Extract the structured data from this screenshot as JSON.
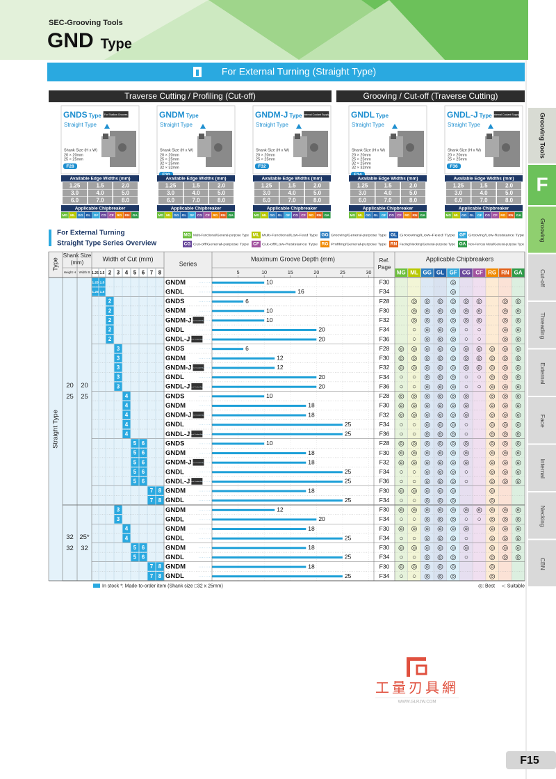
{
  "header": {
    "category": "SEC-Grooving Tools",
    "title": "GND",
    "title_suffix": "Type"
  },
  "banner": "For External Turning (Straight Type)",
  "sections": [
    "Traverse Cutting / Profiling (Cut-off)",
    "Grooving / Cut-off (Traverse Cutting)"
  ],
  "cards_common": {
    "type_word": "Type",
    "subtitle": "Straight Type",
    "shank_label": "Shank Size (H x W)",
    "edge_title": "Available Edge Widths (mm)",
    "edge_widths": [
      "1.25",
      "1.5",
      "2.0",
      "3.0",
      "4.0",
      "5.0",
      "6.0",
      "7.0",
      "8.0"
    ],
    "chip_title": "Applicable Chipbreaker"
  },
  "cards": [
    {
      "name": "GNDS",
      "badge": "For Shallow Grooves",
      "shanks": [
        "20 × 20mm",
        "25 × 25mm"
      ],
      "page": "F28"
    },
    {
      "name": "GNDM",
      "shanks": [
        "20 × 20mm",
        "25 × 25mm",
        "32 × 25mm",
        "32 × 32mm"
      ],
      "page": "F30"
    },
    {
      "name": "GNDM-J",
      "badge": "Internal Coolant Supply",
      "shanks": [
        "20 × 20mm",
        "25 × 25mm"
      ],
      "page": "F32"
    },
    {
      "name": "GNDL",
      "shanks": [
        "20 × 20mm",
        "25 × 25mm",
        "32 × 25mm",
        "32 × 32mm"
      ],
      "page": "F34"
    },
    {
      "name": "GNDL-J",
      "badge": "Internal Coolant Supply",
      "shanks": [
        "20 × 20mm",
        "25 × 25mm"
      ],
      "page": "F36"
    }
  ],
  "chipbreakers": [
    {
      "code": "MG",
      "text": "Multi-Functional/General-purpose Type",
      "color": "#6cbf3c",
      "tint": "#e6f3dc"
    },
    {
      "code": "ML",
      "text": "Multi-Functional/Low-Feed Type",
      "color": "#b9c800",
      "tint": "#f2f5d6"
    },
    {
      "code": "GG",
      "text": "Grooving/General-purpose Type",
      "color": "#2f7fc1",
      "tint": "#dce8f5"
    },
    {
      "code": "GL",
      "text": "Grooving/Low-Feed Type",
      "color": "#1f5fa8",
      "tint": "#d9e2f0"
    },
    {
      "code": "GF",
      "text": "Grooving/Low-Resistance Type",
      "color": "#37a9dc",
      "tint": "#dcf0f9"
    },
    {
      "code": "CG",
      "text": "Cut-off/General-purpose Type",
      "color": "#6a4a9c",
      "tint": "#e6dff0"
    },
    {
      "code": "CF",
      "text": "Cut-off/Low-Resistance Type",
      "color": "#a2539f",
      "tint": "#f0dff0"
    },
    {
      "code": "RG",
      "text": "Profiling/General-purpose Type",
      "color": "#f08a00",
      "tint": "#fdebd4"
    },
    {
      "code": "RN",
      "text": "Facing/Necking/General-purpose Type",
      "color": "#e2601a",
      "tint": "#fbe2d6"
    },
    {
      "code": "GA",
      "text": "Non-Ferrous Metal/General-purpose Type",
      "color": "#2e9a48",
      "tint": "#dcefe0"
    }
  ],
  "overview": {
    "title": [
      "For External Turning",
      "Straight Type Series Overview"
    ]
  },
  "table": {
    "type_header": "Type",
    "shank_header": [
      "Shank Size",
      "(mm)"
    ],
    "height_header": "Height H",
    "width_header": "Width B",
    "cut_header": "Width of Cut (mm)",
    "widths": [
      "1.25",
      "1.5",
      "2",
      "3",
      "4",
      "5",
      "6",
      "7",
      "8"
    ],
    "series_header": "Series",
    "depth_header": "Maximum Groove Depth (mm)",
    "depth_lim": [
      0,
      31
    ],
    "depth_ticks": [
      5,
      10,
      15,
      20,
      25,
      30
    ],
    "ref_header": [
      "Ref.",
      "Page"
    ],
    "chip_header": "Applicable Chipbreakers",
    "type_label": "Straight Type",
    "groups": [
      {
        "heights": [
          "20",
          "25"
        ],
        "widths": [
          "20",
          "25"
        ],
        "rows": [
          0,
          23
        ]
      },
      {
        "heights": [
          "32",
          "32"
        ],
        "widths": [
          "25*",
          "32"
        ],
        "rows": [
          24,
          31
        ]
      }
    ],
    "rows": [
      {
        "series": "GNDM",
        "widths": [
          "1.25",
          "1.5"
        ],
        "depth": 10,
        "page": "F30",
        "cb": [
          null,
          null,
          null,
          null,
          "◎",
          null,
          null,
          null,
          null,
          null
        ]
      },
      {
        "series": "GNDL",
        "widths": [
          "1.25",
          "1.5"
        ],
        "depth": 16,
        "page": "F34",
        "cb": [
          null,
          null,
          null,
          null,
          "◎",
          null,
          null,
          null,
          null,
          null
        ]
      },
      {
        "series": "GNDS",
        "widths": [
          "2"
        ],
        "depth": 6,
        "page": "F28",
        "cb": [
          null,
          "◎",
          "◎",
          "◎",
          "◎",
          "◎",
          "◎",
          null,
          "◎",
          "◎"
        ]
      },
      {
        "series": "GNDM",
        "widths": [
          "2"
        ],
        "depth": 10,
        "page": "F30",
        "cb": [
          null,
          "◎",
          "◎",
          "◎",
          "◎",
          "◎",
          "◎",
          null,
          "◎",
          "◎"
        ]
      },
      {
        "series": "GNDM-J",
        "badge": "Internal Coolant Supply",
        "widths": [
          "2"
        ],
        "depth": 10,
        "page": "F32",
        "cb": [
          null,
          "◎",
          "◎",
          "◎",
          "◎",
          "◎",
          "◎",
          null,
          "◎",
          "◎"
        ]
      },
      {
        "series": "GNDL",
        "widths": [
          "2"
        ],
        "depth": 20,
        "page": "F34",
        "cb": [
          null,
          "○",
          "◎",
          "◎",
          "◎",
          "○",
          "○",
          null,
          "◎",
          "◎"
        ]
      },
      {
        "series": "GNDL-J",
        "badge": "Internal Coolant Supply",
        "widths": [
          "2"
        ],
        "depth": 20,
        "page": "F36",
        "cb": [
          null,
          "○",
          "◎",
          "◎",
          "◎",
          "○",
          "○",
          null,
          "◎",
          "◎"
        ]
      },
      {
        "series": "GNDS",
        "widths": [
          "3"
        ],
        "depth": 6,
        "page": "F28",
        "cb": [
          "◎",
          "◎",
          "◎",
          "◎",
          "◎",
          "◎",
          "◎",
          "◎",
          "◎",
          "◎"
        ]
      },
      {
        "series": "GNDM",
        "widths": [
          "3"
        ],
        "depth": 12,
        "page": "F30",
        "cb": [
          "◎",
          "◎",
          "◎",
          "◎",
          "◎",
          "◎",
          "◎",
          "◎",
          "◎",
          "◎"
        ]
      },
      {
        "series": "GNDM-J",
        "badge": "Internal Coolant Supply",
        "widths": [
          "3"
        ],
        "depth": 12,
        "page": "F32",
        "cb": [
          "◎",
          "◎",
          "◎",
          "◎",
          "◎",
          "◎",
          "◎",
          "◎",
          "◎",
          "◎"
        ]
      },
      {
        "series": "GNDL",
        "widths": [
          "3"
        ],
        "depth": 20,
        "page": "F34",
        "cb": [
          "○",
          "○",
          "◎",
          "◎",
          "◎",
          "○",
          "○",
          "◎",
          "◎",
          "◎"
        ]
      },
      {
        "series": "GNDL-J",
        "badge": "Internal Coolant Supply",
        "widths": [
          "3"
        ],
        "depth": 20,
        "page": "F36",
        "cb": [
          "○",
          "○",
          "◎",
          "◎",
          "◎",
          "○",
          "○",
          "◎",
          "◎",
          "◎"
        ]
      },
      {
        "series": "GNDS",
        "widths": [
          "4"
        ],
        "depth": 10,
        "page": "F28",
        "cb": [
          "◎",
          "◎",
          "◎",
          "◎",
          "◎",
          "◎",
          null,
          "◎",
          "◎",
          "◎"
        ]
      },
      {
        "series": "GNDM",
        "widths": [
          "4"
        ],
        "depth": 18,
        "page": "F30",
        "cb": [
          "◎",
          "◎",
          "◎",
          "◎",
          "◎",
          "◎",
          null,
          "◎",
          "◎",
          "◎"
        ]
      },
      {
        "series": "GNDM-J",
        "badge": "Internal Coolant Supply",
        "widths": [
          "4"
        ],
        "depth": 18,
        "page": "F32",
        "cb": [
          "◎",
          "◎",
          "◎",
          "◎",
          "◎",
          "◎",
          null,
          "◎",
          "◎",
          "◎"
        ]
      },
      {
        "series": "GNDL",
        "widths": [
          "4"
        ],
        "depth": 25,
        "page": "F34",
        "cb": [
          "○",
          "○",
          "◎",
          "◎",
          "◎",
          "○",
          null,
          "◎",
          "◎",
          "◎"
        ]
      },
      {
        "series": "GNDL-J",
        "badge": "Internal Coolant Supply",
        "widths": [
          "4"
        ],
        "depth": 25,
        "page": "F36",
        "cb": [
          "○",
          "○",
          "◎",
          "◎",
          "◎",
          "○",
          null,
          "◎",
          "◎",
          "◎"
        ]
      },
      {
        "series": "GNDS",
        "widths": [
          "5",
          "6"
        ],
        "depth": 10,
        "page": "F28",
        "cb": [
          "◎",
          "◎",
          "◎",
          "◎",
          "◎",
          "◎",
          null,
          "◎",
          "◎",
          "◎"
        ]
      },
      {
        "series": "GNDM",
        "widths": [
          "5",
          "6"
        ],
        "depth": 18,
        "page": "F30",
        "cb": [
          "◎",
          "◎",
          "◎",
          "◎",
          "◎",
          "◎",
          null,
          "◎",
          "◎",
          "◎"
        ]
      },
      {
        "series": "GNDM-J",
        "badge": "Internal Coolant Supply",
        "widths": [
          "5",
          "6"
        ],
        "depth": 18,
        "page": "F32",
        "cb": [
          "◎",
          "◎",
          "◎",
          "◎",
          "◎",
          "◎",
          null,
          "◎",
          "◎",
          "◎"
        ]
      },
      {
        "series": "GNDL",
        "widths": [
          "5",
          "6"
        ],
        "depth": 25,
        "page": "F34",
        "cb": [
          "○",
          "○",
          "◎",
          "◎",
          "◎",
          "○",
          null,
          "◎",
          "◎",
          "◎"
        ]
      },
      {
        "series": "GNDL-J",
        "badge": "Internal Coolant Supply",
        "widths": [
          "5",
          "6"
        ],
        "depth": 25,
        "page": "F36",
        "cb": [
          "○",
          "○",
          "◎",
          "◎",
          "◎",
          "○",
          null,
          "◎",
          "◎",
          "◎"
        ]
      },
      {
        "series": "GNDM",
        "widths": [
          "7",
          "8"
        ],
        "depth": 18,
        "page": "F30",
        "cb": [
          "◎",
          "◎",
          "◎",
          "◎",
          "◎",
          null,
          null,
          "◎",
          null,
          null
        ]
      },
      {
        "series": "GNDL",
        "widths": [
          "7",
          "8"
        ],
        "depth": 25,
        "page": "F34",
        "cb": [
          "○",
          "○",
          "◎",
          "◎",
          "◎",
          null,
          null,
          "◎",
          null,
          null
        ]
      },
      {
        "series": "GNDM",
        "widths": [
          "3"
        ],
        "depth": 12,
        "page": "F30",
        "cb": [
          "◎",
          "◎",
          "◎",
          "◎",
          "◎",
          "◎",
          "◎",
          "◎",
          "◎",
          "◎"
        ]
      },
      {
        "series": "GNDL",
        "widths": [
          "3"
        ],
        "depth": 20,
        "page": "F34",
        "cb": [
          "○",
          "○",
          "◎",
          "◎",
          "◎",
          "○",
          "○",
          "◎",
          "◎",
          "◎"
        ]
      },
      {
        "series": "GNDM",
        "widths": [
          "4"
        ],
        "depth": 18,
        "page": "F30",
        "cb": [
          "◎",
          "◎",
          "◎",
          "◎",
          "◎",
          "◎",
          null,
          "◎",
          "◎",
          "◎"
        ]
      },
      {
        "series": "GNDL",
        "widths": [
          "4"
        ],
        "depth": 25,
        "page": "F34",
        "cb": [
          "○",
          "○",
          "◎",
          "◎",
          "◎",
          "○",
          null,
          "◎",
          "◎",
          "◎"
        ]
      },
      {
        "series": "GNDM",
        "widths": [
          "5",
          "6"
        ],
        "depth": 18,
        "page": "F30",
        "cb": [
          "◎",
          "◎",
          "◎",
          "◎",
          "◎",
          "◎",
          null,
          "◎",
          "◎",
          "◎"
        ]
      },
      {
        "series": "GNDL",
        "widths": [
          "5",
          "6"
        ],
        "depth": 25,
        "page": "F34",
        "cb": [
          "○",
          "○",
          "◎",
          "◎",
          "◎",
          "○",
          null,
          "◎",
          "◎",
          "◎"
        ]
      },
      {
        "series": "GNDM",
        "widths": [
          "7",
          "8"
        ],
        "depth": 18,
        "page": "F30",
        "cb": [
          "◎",
          "◎",
          "◎",
          "◎",
          "◎",
          null,
          null,
          "◎",
          null,
          null
        ]
      },
      {
        "series": "GNDL",
        "widths": [
          "7",
          "8"
        ],
        "depth": 25,
        "page": "F34",
        "cb": [
          "○",
          "○",
          "◎",
          "◎",
          "◎",
          null,
          null,
          "◎",
          null,
          null
        ]
      }
    ]
  },
  "footer": {
    "note": "In stock *: Made-to-order item (Shank size □32 x 25mm)",
    "best": "◎: Best",
    "suitable": "○: Suitable"
  },
  "logo": {
    "name": "工量刃具網",
    "url": "WWW.GLRJW.COM"
  },
  "tabs": {
    "title": "Grooving Tools",
    "letter": "F",
    "items": [
      "Grooving",
      "Cut-off",
      "Threading",
      "External",
      "Face",
      "Internal",
      "Necking",
      "CBN"
    ]
  },
  "page_number": "F15"
}
